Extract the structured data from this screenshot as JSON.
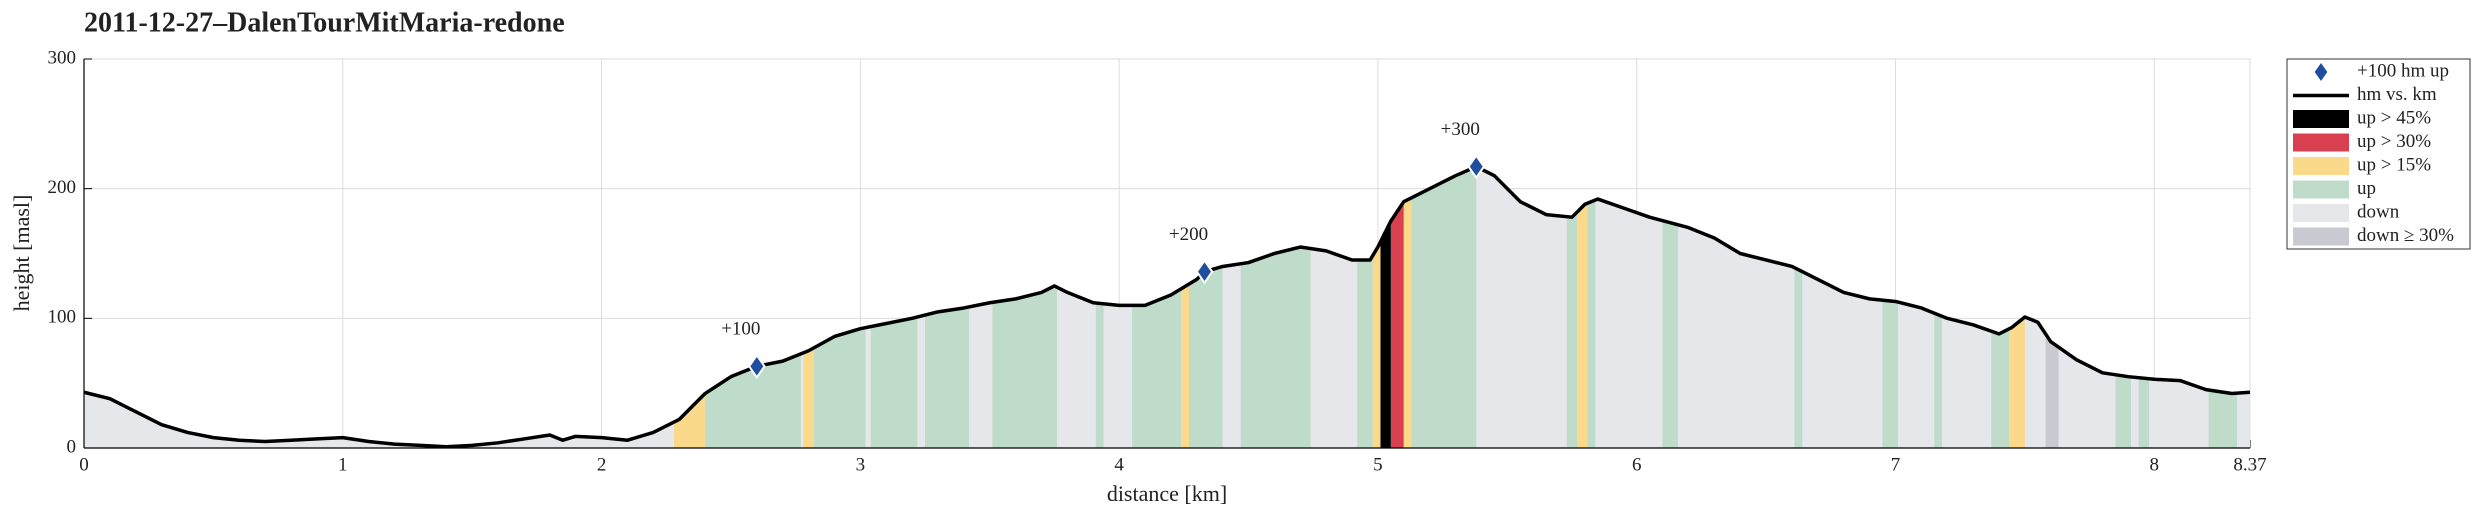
{
  "chart_data": {
    "type": "elevation-profile",
    "title": "2011-12-27–DalenTourMitMaria-redone",
    "x_label": "distance [km]",
    "y_label": "height [masl]",
    "xlim": [
      0,
      8.37
    ],
    "ylim": [
      0,
      300
    ],
    "xticks": [
      0,
      1,
      2,
      3,
      4,
      5,
      6,
      7,
      8,
      8.37
    ],
    "yticks": [
      0,
      100,
      200,
      300
    ],
    "grid": true,
    "legend": "outside-right",
    "markers": {
      "name": "+100 hm up",
      "color": "#1f4e9e",
      "x": [
        2.6,
        4.33,
        5.38
      ],
      "values": [
        63,
        136,
        217
      ],
      "labels": [
        "+100",
        "+200",
        "+300"
      ]
    },
    "profile": {
      "name": "hm vs. km",
      "color": "#000000",
      "x": [
        0,
        0.1,
        0.2,
        0.3,
        0.4,
        0.5,
        0.6,
        0.7,
        0.8,
        0.9,
        1.0,
        1.1,
        1.2,
        1.3,
        1.4,
        1.5,
        1.6,
        1.7,
        1.8,
        1.85,
        1.9,
        2.0,
        2.1,
        2.2,
        2.3,
        2.4,
        2.5,
        2.6,
        2.7,
        2.8,
        2.9,
        3.0,
        3.1,
        3.2,
        3.3,
        3.4,
        3.5,
        3.6,
        3.7,
        3.75,
        3.8,
        3.9,
        4.0,
        4.1,
        4.2,
        4.3,
        4.33,
        4.4,
        4.5,
        4.6,
        4.7,
        4.8,
        4.9,
        4.97,
        5.0,
        5.05,
        5.1,
        5.2,
        5.3,
        5.38,
        5.45,
        5.55,
        5.65,
        5.75,
        5.8,
        5.85,
        5.95,
        6.05,
        6.2,
        6.3,
        6.4,
        6.6,
        6.7,
        6.8,
        6.9,
        7.0,
        7.1,
        7.2,
        7.3,
        7.4,
        7.45,
        7.5,
        7.55,
        7.6,
        7.7,
        7.8,
        7.9,
        8.0,
        8.1,
        8.2,
        8.3,
        8.37
      ],
      "values": [
        43,
        38,
        28,
        18,
        12,
        8,
        6,
        5,
        6,
        7,
        8,
        5,
        3,
        2,
        1,
        2,
        4,
        7,
        10,
        6,
        9,
        8,
        6,
        12,
        22,
        42,
        55,
        63,
        67,
        75,
        86,
        92,
        96,
        100,
        105,
        108,
        112,
        115,
        120,
        125,
        120,
        112,
        110,
        110,
        118,
        130,
        136,
        140,
        143,
        150,
        155,
        152,
        145,
        145,
        155,
        175,
        190,
        200,
        210,
        217,
        210,
        190,
        180,
        178,
        188,
        192,
        185,
        178,
        170,
        162,
        150,
        140,
        130,
        120,
        115,
        113,
        108,
        100,
        95,
        88,
        93,
        101,
        97,
        82,
        68,
        58,
        55,
        53,
        52,
        45,
        42,
        43
      ]
    },
    "series": [
      {
        "name": "up > 45%",
        "color": "#000000",
        "ranges": [
          [
            5.01,
            5.05
          ]
        ]
      },
      {
        "name": "up > 30%",
        "color": "#d9404f",
        "ranges": [
          [
            5.05,
            5.1
          ]
        ]
      },
      {
        "name": "up > 15%",
        "color": "#fbd98b",
        "ranges": [
          [
            2.28,
            2.4
          ],
          [
            2.78,
            2.82
          ],
          [
            4.24,
            4.27
          ],
          [
            4.98,
            5.01
          ],
          [
            5.1,
            5.13
          ],
          [
            5.77,
            5.81
          ],
          [
            7.44,
            7.5
          ]
        ]
      },
      {
        "name": "up",
        "color": "#bfdccb",
        "ranges": [
          [
            2.4,
            2.77
          ],
          [
            2.82,
            3.02
          ],
          [
            3.04,
            3.22
          ],
          [
            3.25,
            3.42
          ],
          [
            3.51,
            3.76
          ],
          [
            3.91,
            3.94
          ],
          [
            4.05,
            4.24
          ],
          [
            4.27,
            4.4
          ],
          [
            4.47,
            4.74
          ],
          [
            4.92,
            4.98
          ],
          [
            5.13,
            5.38
          ],
          [
            5.73,
            5.77
          ],
          [
            5.81,
            5.84
          ],
          [
            6.1,
            6.16
          ],
          [
            6.61,
            6.64
          ],
          [
            6.95,
            7.01
          ],
          [
            7.15,
            7.18
          ],
          [
            7.37,
            7.44
          ],
          [
            7.85,
            7.91
          ],
          [
            7.94,
            7.98
          ],
          [
            8.21,
            8.32
          ]
        ]
      },
      {
        "name": "down",
        "color": "#e6e7ea",
        "ranges": [
          [
            0,
            8.37
          ]
        ]
      },
      {
        "name": "down ≥ 30%",
        "color": "#c8c9d1",
        "ranges": [
          [
            7.58,
            7.63
          ]
        ]
      }
    ]
  }
}
